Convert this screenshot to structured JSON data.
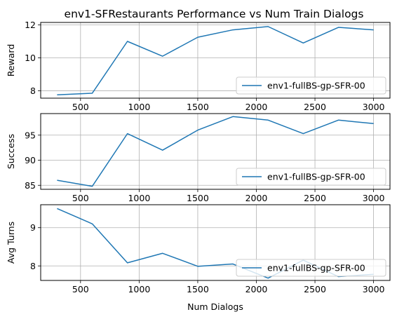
{
  "title": "env1-SFRestaurants Performance vs Num Train Dialogs",
  "colors": {
    "line": "#1f77b4",
    "grid": "#b0b0b0",
    "axis": "#000000",
    "legend_border": "#cccccc"
  },
  "chart_data": [
    {
      "type": "line",
      "ylabel": "Reward",
      "xlabel": "",
      "x": [
        300,
        600,
        900,
        1200,
        1500,
        1800,
        2100,
        2400,
        2700,
        3000
      ],
      "series": [
        {
          "name": "env1-fullBS-gp-SFR-00",
          "values": [
            7.75,
            7.85,
            11.0,
            10.1,
            11.25,
            11.7,
            11.9,
            10.9,
            11.85,
            11.7
          ]
        }
      ],
      "xlim": [
        160,
        3140
      ],
      "ylim": [
        7.55,
        12.15
      ],
      "xticks": [
        500,
        1000,
        1500,
        2000,
        2500,
        3000
      ],
      "xtick_labels": [
        "500",
        "1000",
        "1500",
        "2000",
        "2500",
        "3000"
      ],
      "yticks": [
        8,
        10,
        12
      ],
      "ytick_labels": [
        "8",
        "10",
        "12"
      ],
      "grid": true,
      "legend": "lower-right"
    },
    {
      "type": "line",
      "ylabel": "Success",
      "xlabel": "",
      "x": [
        300,
        600,
        900,
        1200,
        1500,
        1800,
        2100,
        2400,
        2700,
        3000
      ],
      "series": [
        {
          "name": "env1-fullBS-gp-SFR-00",
          "values": [
            86.0,
            84.8,
            95.3,
            92.0,
            96.0,
            98.7,
            98.0,
            95.3,
            98.0,
            97.3
          ]
        }
      ],
      "xlim": [
        160,
        3140
      ],
      "ylim": [
        84.2,
        99.3
      ],
      "xticks": [
        500,
        1000,
        1500,
        2000,
        2500,
        3000
      ],
      "xtick_labels": [
        "500",
        "1000",
        "1500",
        "2000",
        "2500",
        "3000"
      ],
      "yticks": [
        85,
        90,
        95
      ],
      "ytick_labels": [
        "85",
        "90",
        "95"
      ],
      "grid": true,
      "legend": "lower-right"
    },
    {
      "type": "line",
      "ylabel": "Avg Turns",
      "xlabel": "Num Dialogs",
      "x": [
        300,
        600,
        900,
        1200,
        1500,
        1800,
        2100,
        2400,
        2700,
        3000
      ],
      "series": [
        {
          "name": "env1-fullBS-gp-SFR-00",
          "values": [
            9.5,
            9.1,
            8.08,
            8.33,
            7.99,
            8.05,
            7.68,
            8.15,
            7.72,
            7.78
          ]
        }
      ],
      "xlim": [
        160,
        3140
      ],
      "ylim": [
        7.62,
        9.6
      ],
      "xticks": [
        500,
        1000,
        1500,
        2000,
        2500,
        3000
      ],
      "xtick_labels": [
        "500",
        "1000",
        "1500",
        "2000",
        "2500",
        "3000"
      ],
      "yticks": [
        8,
        9
      ],
      "ytick_labels": [
        "8",
        "9"
      ],
      "grid": true,
      "legend": "lower-right"
    }
  ]
}
